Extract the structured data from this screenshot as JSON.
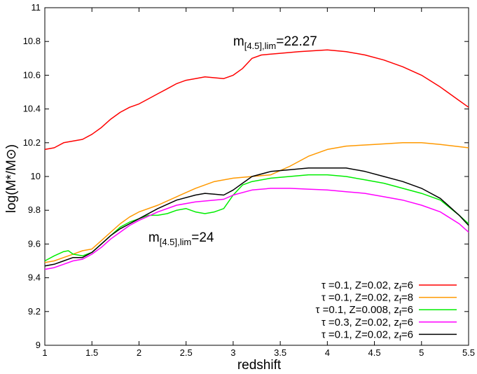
{
  "chart_data": {
    "type": "line",
    "xlabel": "redshift",
    "ylabel": "log(M*/M⊙)",
    "xlim": [
      1,
      5.5
    ],
    "ylim": [
      9,
      11
    ],
    "x_ticks": [
      1,
      1.5,
      2,
      2.5,
      3,
      3.5,
      4,
      4.5,
      5,
      5.5
    ],
    "x_tick_labels": [
      "1",
      "1.5",
      "2",
      "2.5",
      "3",
      "3.5",
      "4",
      "4.5",
      "5",
      "5.5"
    ],
    "y_ticks": [
      9,
      9.2,
      9.4,
      9.6,
      9.8,
      10,
      10.2,
      10.4,
      10.6,
      10.8,
      11
    ],
    "y_tick_labels": [
      "9",
      "9.2",
      "9.4",
      "9.6",
      "9.8",
      "10",
      "10.2",
      "10.4",
      "10.6",
      "10.8",
      "11"
    ],
    "grid": false,
    "legend_position": "bottom-right",
    "annotations": [
      {
        "main": "m",
        "sub": "[4.5],lim",
        "tail": "=22.27",
        "x": 3.0,
        "y": 10.8
      },
      {
        "main": "m",
        "sub": "[4.5],lim",
        "tail": "=24",
        "x": 2.1,
        "y": 9.64
      }
    ],
    "series": [
      {
        "label": {
          "a": "τ =0.1, Z=0.02, z",
          "sub": "f",
          "b": "=6"
        },
        "color": "#ff0000",
        "points": [
          [
            1.0,
            10.16
          ],
          [
            1.1,
            10.17
          ],
          [
            1.2,
            10.2
          ],
          [
            1.3,
            10.21
          ],
          [
            1.4,
            10.22
          ],
          [
            1.5,
            10.25
          ],
          [
            1.6,
            10.29
          ],
          [
            1.7,
            10.34
          ],
          [
            1.8,
            10.38
          ],
          [
            1.9,
            10.41
          ],
          [
            2.0,
            10.43
          ],
          [
            2.1,
            10.46
          ],
          [
            2.2,
            10.49
          ],
          [
            2.3,
            10.52
          ],
          [
            2.4,
            10.55
          ],
          [
            2.5,
            10.57
          ],
          [
            2.6,
            10.58
          ],
          [
            2.7,
            10.59
          ],
          [
            2.8,
            10.585
          ],
          [
            2.9,
            10.58
          ],
          [
            3.0,
            10.6
          ],
          [
            3.1,
            10.64
          ],
          [
            3.2,
            10.7
          ],
          [
            3.3,
            10.72
          ],
          [
            3.5,
            10.73
          ],
          [
            3.7,
            10.74
          ],
          [
            4.0,
            10.75
          ],
          [
            4.2,
            10.74
          ],
          [
            4.4,
            10.72
          ],
          [
            4.6,
            10.69
          ],
          [
            4.8,
            10.65
          ],
          [
            5.0,
            10.6
          ],
          [
            5.2,
            10.53
          ],
          [
            5.4,
            10.45
          ],
          [
            5.5,
            10.41
          ]
        ]
      },
      {
        "label": {
          "a": "τ =0.1, Z=0.02, z",
          "sub": "f",
          "b": "=8"
        },
        "color": "#ff9900",
        "points": [
          [
            1.0,
            9.49
          ],
          [
            1.1,
            9.5
          ],
          [
            1.2,
            9.52
          ],
          [
            1.3,
            9.54
          ],
          [
            1.4,
            9.56
          ],
          [
            1.5,
            9.57
          ],
          [
            1.6,
            9.62
          ],
          [
            1.7,
            9.67
          ],
          [
            1.8,
            9.72
          ],
          [
            1.9,
            9.76
          ],
          [
            2.0,
            9.79
          ],
          [
            2.2,
            9.83
          ],
          [
            2.4,
            9.88
          ],
          [
            2.6,
            9.93
          ],
          [
            2.8,
            9.97
          ],
          [
            3.0,
            9.99
          ],
          [
            3.2,
            10.0
          ],
          [
            3.4,
            10.01
          ],
          [
            3.6,
            10.06
          ],
          [
            3.8,
            10.12
          ],
          [
            4.0,
            10.16
          ],
          [
            4.2,
            10.18
          ],
          [
            4.5,
            10.19
          ],
          [
            4.8,
            10.2
          ],
          [
            5.0,
            10.2
          ],
          [
            5.2,
            10.19
          ],
          [
            5.5,
            10.17
          ]
        ]
      },
      {
        "label": {
          "a": "τ =0.1, Z=0.008, z",
          "sub": "f",
          "b": "=6"
        },
        "color": "#00ee00",
        "points": [
          [
            1.0,
            9.5
          ],
          [
            1.1,
            9.53
          ],
          [
            1.2,
            9.555
          ],
          [
            1.25,
            9.56
          ],
          [
            1.3,
            9.54
          ],
          [
            1.4,
            9.53
          ],
          [
            1.5,
            9.55
          ],
          [
            1.6,
            9.6
          ],
          [
            1.7,
            9.65
          ],
          [
            1.8,
            9.7
          ],
          [
            1.9,
            9.73
          ],
          [
            2.0,
            9.75
          ],
          [
            2.1,
            9.77
          ],
          [
            2.2,
            9.77
          ],
          [
            2.3,
            9.78
          ],
          [
            2.4,
            9.8
          ],
          [
            2.5,
            9.81
          ],
          [
            2.6,
            9.79
          ],
          [
            2.7,
            9.78
          ],
          [
            2.8,
            9.79
          ],
          [
            2.9,
            9.81
          ],
          [
            3.0,
            9.89
          ],
          [
            3.1,
            9.95
          ],
          [
            3.2,
            9.97
          ],
          [
            3.4,
            9.99
          ],
          [
            3.6,
            10.0
          ],
          [
            3.8,
            10.01
          ],
          [
            4.0,
            10.01
          ],
          [
            4.2,
            10.0
          ],
          [
            4.4,
            9.98
          ],
          [
            4.6,
            9.96
          ],
          [
            4.8,
            9.93
          ],
          [
            5.0,
            9.9
          ],
          [
            5.2,
            9.86
          ],
          [
            5.4,
            9.77
          ],
          [
            5.5,
            9.72
          ]
        ]
      },
      {
        "label": {
          "a": "τ =0.3, Z=0.02, z",
          "sub": "f",
          "b": "=6"
        },
        "color": "#ff00ff",
        "points": [
          [
            1.0,
            9.45
          ],
          [
            1.1,
            9.46
          ],
          [
            1.2,
            9.48
          ],
          [
            1.3,
            9.5
          ],
          [
            1.4,
            9.51
          ],
          [
            1.5,
            9.54
          ],
          [
            1.6,
            9.58
          ],
          [
            1.7,
            9.63
          ],
          [
            1.8,
            9.67
          ],
          [
            1.9,
            9.71
          ],
          [
            2.0,
            9.74
          ],
          [
            2.2,
            9.79
          ],
          [
            2.4,
            9.83
          ],
          [
            2.6,
            9.85
          ],
          [
            2.8,
            9.86
          ],
          [
            2.9,
            9.865
          ],
          [
            3.0,
            9.89
          ],
          [
            3.2,
            9.92
          ],
          [
            3.4,
            9.93
          ],
          [
            3.6,
            9.93
          ],
          [
            3.8,
            9.925
          ],
          [
            4.0,
            9.92
          ],
          [
            4.2,
            9.91
          ],
          [
            4.4,
            9.9
          ],
          [
            4.6,
            9.88
          ],
          [
            4.8,
            9.86
          ],
          [
            5.0,
            9.83
          ],
          [
            5.2,
            9.79
          ],
          [
            5.4,
            9.72
          ],
          [
            5.5,
            9.67
          ]
        ]
      },
      {
        "label": {
          "a": "τ =0.1, Z=0.02, z",
          "sub": "f",
          "b": "=6"
        },
        "color": "#000000",
        "points": [
          [
            1.0,
            9.47
          ],
          [
            1.1,
            9.48
          ],
          [
            1.2,
            9.5
          ],
          [
            1.3,
            9.52
          ],
          [
            1.4,
            9.52
          ],
          [
            1.5,
            9.55
          ],
          [
            1.6,
            9.6
          ],
          [
            1.7,
            9.65
          ],
          [
            1.8,
            9.69
          ],
          [
            1.9,
            9.72
          ],
          [
            2.0,
            9.75
          ],
          [
            2.2,
            9.81
          ],
          [
            2.4,
            9.86
          ],
          [
            2.6,
            9.89
          ],
          [
            2.7,
            9.9
          ],
          [
            2.8,
            9.895
          ],
          [
            2.9,
            9.89
          ],
          [
            3.0,
            9.92
          ],
          [
            3.1,
            9.96
          ],
          [
            3.2,
            10.0
          ],
          [
            3.4,
            10.03
          ],
          [
            3.6,
            10.04
          ],
          [
            3.8,
            10.05
          ],
          [
            4.0,
            10.05
          ],
          [
            4.2,
            10.05
          ],
          [
            4.4,
            10.03
          ],
          [
            4.6,
            10.0
          ],
          [
            4.8,
            9.97
          ],
          [
            5.0,
            9.93
          ],
          [
            5.2,
            9.87
          ],
          [
            5.4,
            9.77
          ],
          [
            5.5,
            9.71
          ]
        ]
      }
    ]
  }
}
